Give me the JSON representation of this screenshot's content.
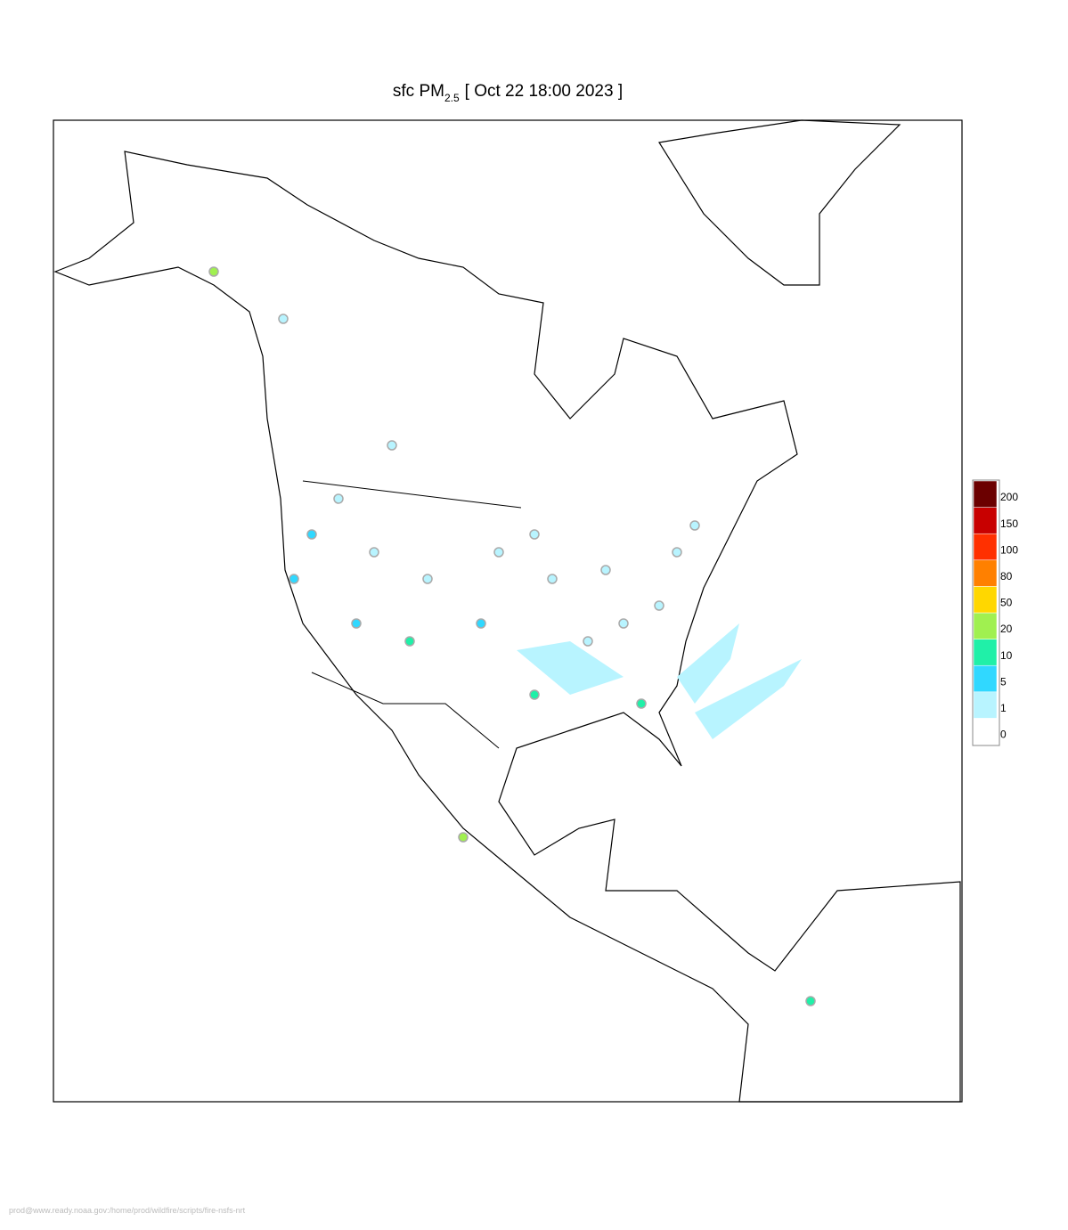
{
  "header": {
    "title": "sfc PM",
    "subscript": "2.5",
    "time": "[ Oct 22 18:00 2023 ]"
  },
  "legend": {
    "levels": [
      0,
      1,
      5,
      10,
      20,
      50,
      80,
      100,
      150,
      200
    ],
    "colors": [
      "#ffffff",
      "#b8f4ff",
      "#30d8ff",
      "#20f0a8",
      "#a0f050",
      "#ffd700",
      "#ff8000",
      "#ff3000",
      "#c80000",
      "#6b0000"
    ]
  },
  "footer": "prod@www.ready.noaa.gov:/home/prod/wildfire/scripts/fire-nsfs-nrt"
}
